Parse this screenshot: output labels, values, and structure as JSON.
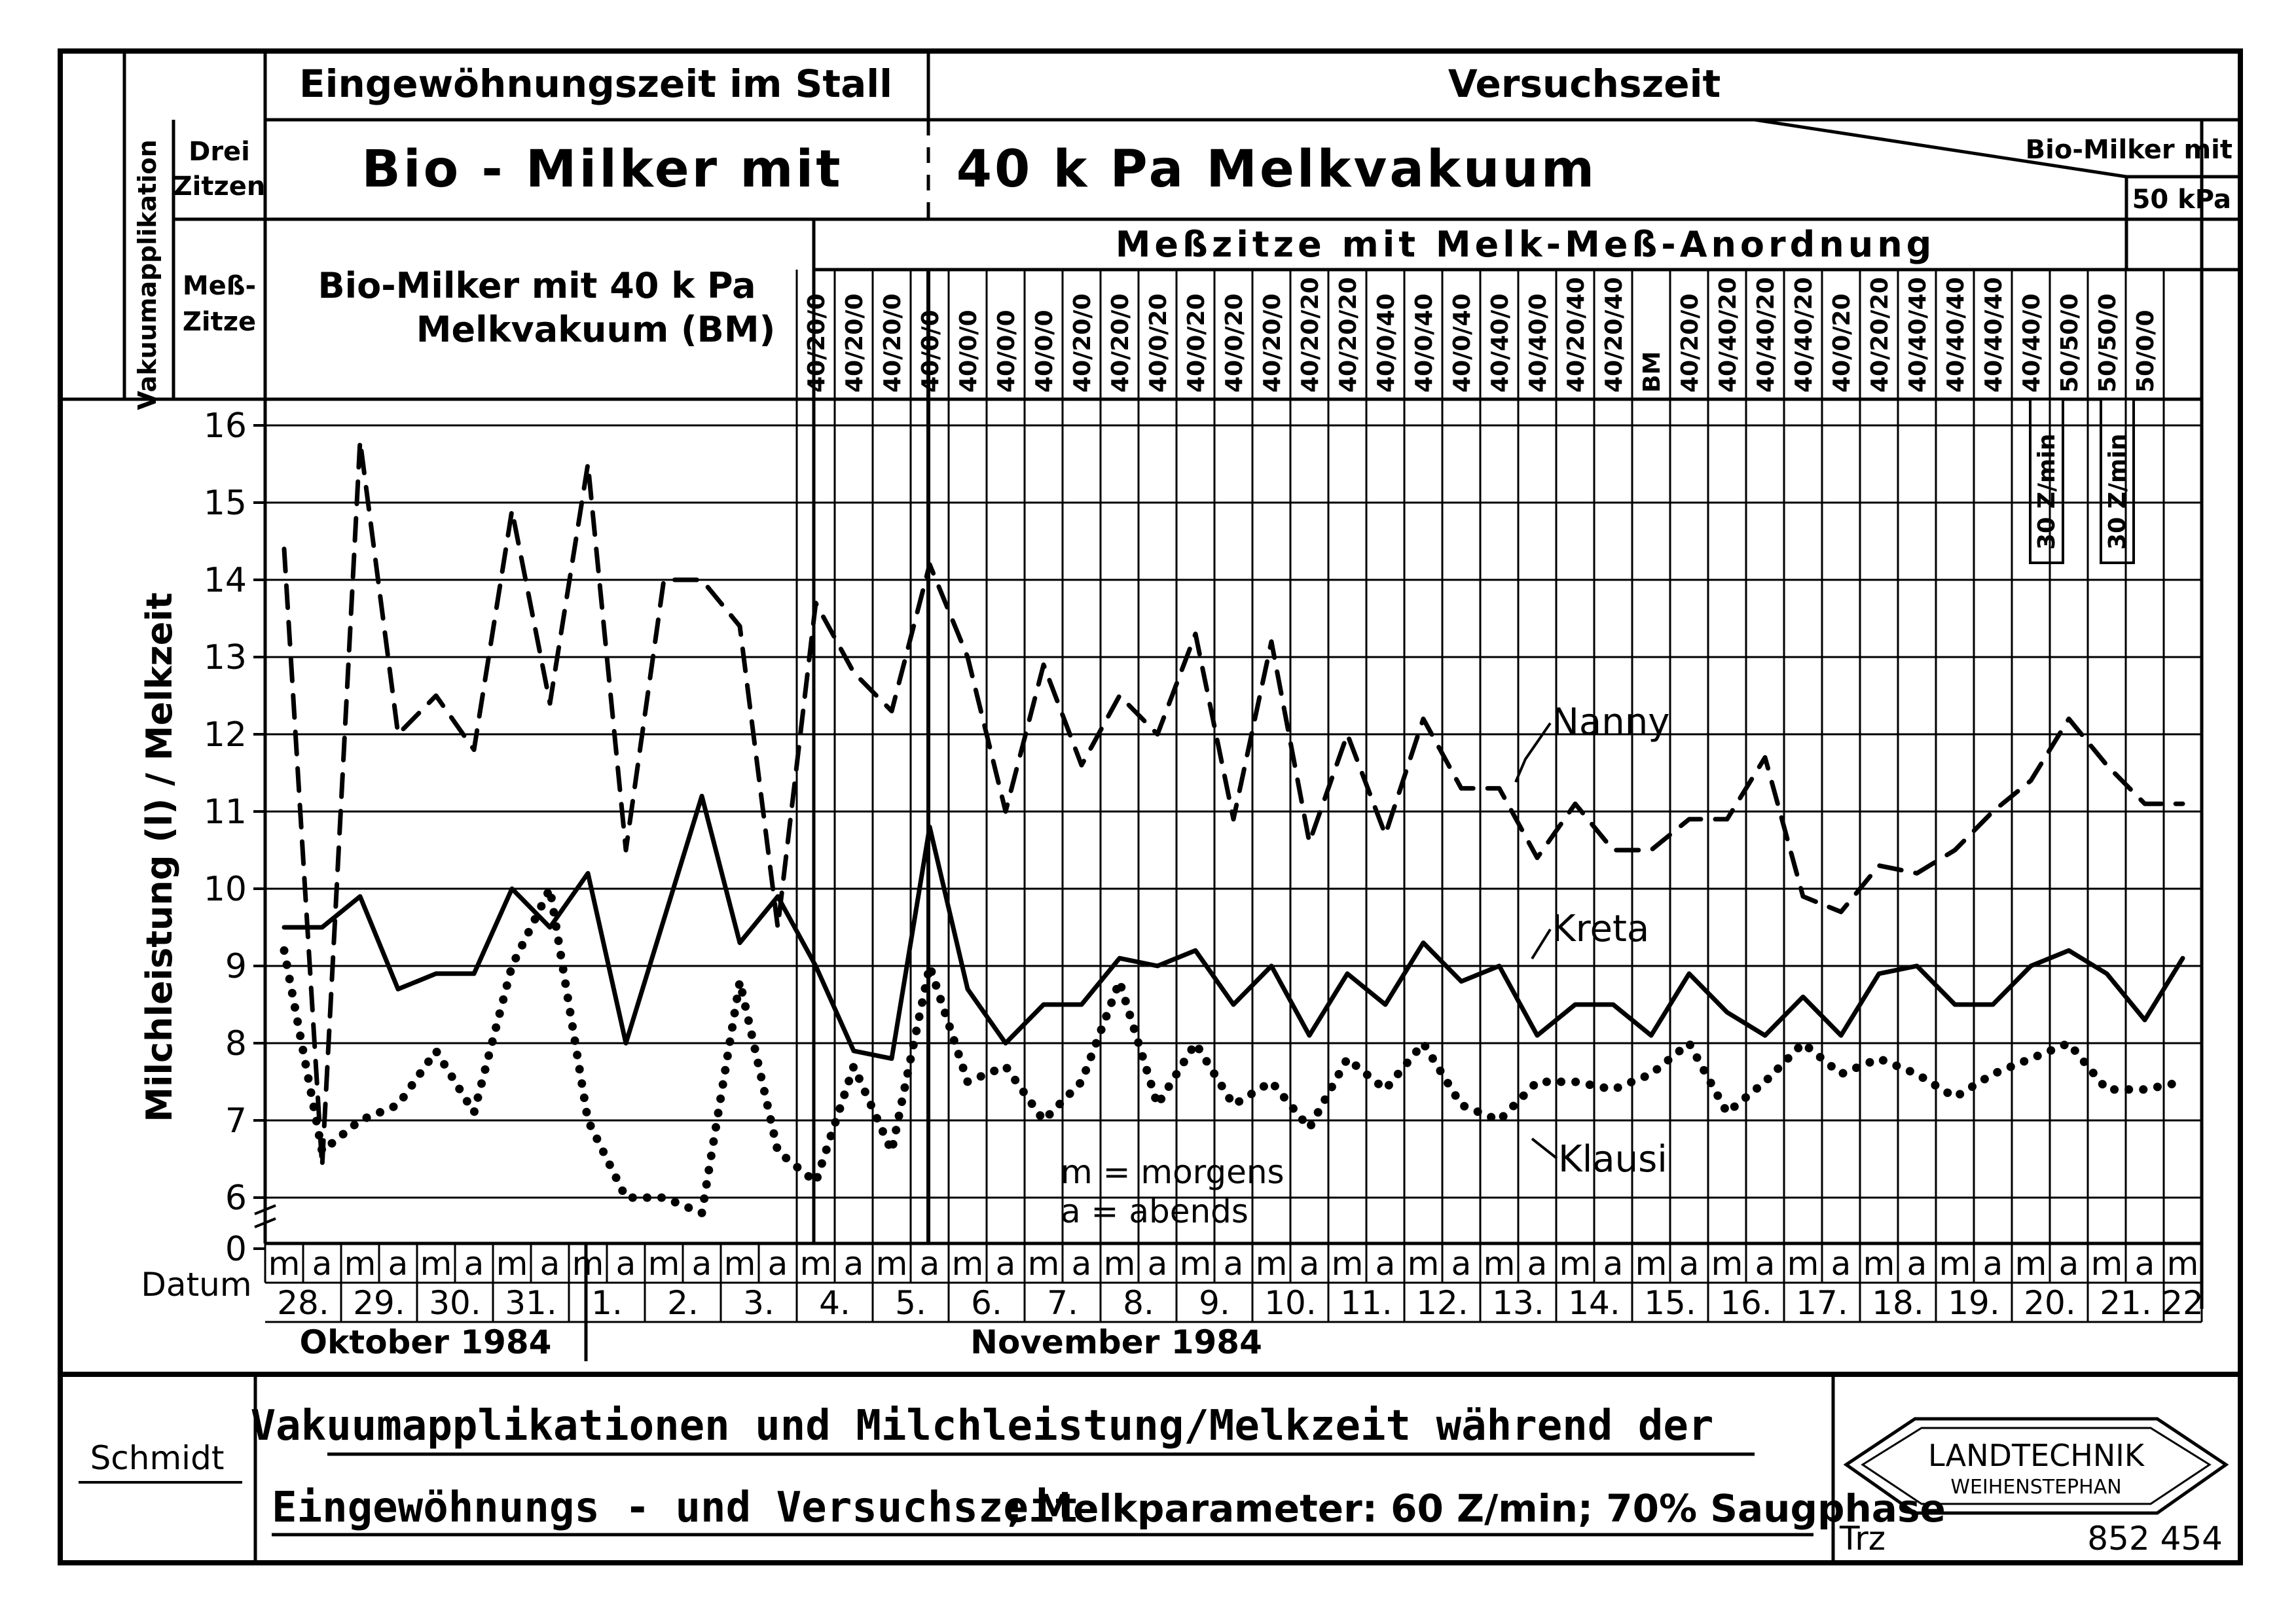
{
  "header": {
    "phase_acclimation": "Eingewöhnungszeit im Stall",
    "phase_trial": "Versuchszeit",
    "row_label_vertical": "Vakuumapplikation",
    "row1_label_a": "Drei",
    "row1_label_b": "Zitzen",
    "row1_text_left": "Bio - Milker  mit",
    "row1_text_right": "40 k Pa  Melkvakuum",
    "row1_text_end_a": "Bio-Milker mit",
    "row1_text_end_b": "50 kPa",
    "row2_label_a": "Meß-",
    "row2_label_b": "Zitze",
    "row2_text_a": "Bio-Milker mit 40 k Pa",
    "row2_text_b": "Melkvakuum (BM)",
    "row2_subheader": "Meßzitze mit Melk-Meß-Anordnung",
    "codes": [
      "40/20/0",
      "40/20/0",
      "40/20/0",
      "40/0/0",
      "40/0/0",
      "40/0/0",
      "40/0/0",
      "40/20/0",
      "40/20/0",
      "40/0/20",
      "40/0/20",
      "40/0/20",
      "40/20/0",
      "40/20/20",
      "40/20/20",
      "40/0/40",
      "40/0/40",
      "40/0/40",
      "40/40/0",
      "40/40/0",
      "40/20/40",
      "40/20/40",
      "BM",
      "40/20/0",
      "40/40/20",
      "40/40/20",
      "40/40/20",
      "40/0/20",
      "40/20/20",
      "40/40/40",
      "40/40/40",
      "40/40/40",
      "40/40/0",
      "50/50/0",
      "50/50/0",
      "50/0/0"
    ],
    "rate_label": "30 Z/min"
  },
  "axes": {
    "ylabel": "Milchleistung (l) / Melkzeit",
    "yticks": [
      "0",
      "6",
      "7",
      "8",
      "9",
      "10",
      "11",
      "12",
      "13",
      "14",
      "15",
      "16"
    ],
    "date_label": "Datum",
    "month1": "Oktober 1984",
    "month2": "November 1984"
  },
  "legend_note": {
    "line1": "m = morgens",
    "line2": "a = abends"
  },
  "chart_data": {
    "type": "line",
    "title": "Vakuumapplikationen und Milchleistung/Melkzeit während der Eingewöhnungs- und Versuchszeit; Melkparameter: 60 Z/min; 70% Saugphase",
    "xlabel": "Datum",
    "ylabel": "Milchleistung (l) / Melkzeit",
    "ylim": [
      5.5,
      16
    ],
    "y_axis_break": "0 shown below broken axis at 6",
    "grid": true,
    "x": [
      "28.m",
      "28.a",
      "29.m",
      "29.a",
      "30.m",
      "30.a",
      "31.m",
      "31.a",
      "1.m",
      "1.a",
      "2.m",
      "2.a",
      "3.m",
      "3.a",
      "4.m",
      "4.a",
      "5.m",
      "5.a",
      "6.m",
      "6.a",
      "7.m",
      "7.a",
      "8.m",
      "8.a",
      "9.m",
      "9.a",
      "10.m",
      "10.a",
      "11.m",
      "11.a",
      "12.m",
      "12.a",
      "13.m",
      "13.a",
      "14.m",
      "14.a",
      "15.m",
      "15.a",
      "16.m",
      "16.a",
      "17.m",
      "17.a",
      "18.m",
      "18.a",
      "19.m",
      "19.a",
      "20.m",
      "20.a",
      "21.m",
      "21.a",
      "22.m"
    ],
    "shift_labels": [
      "m",
      "a",
      "m",
      "a",
      "m",
      "a",
      "m",
      "a",
      "m",
      "a",
      "m",
      "a",
      "m",
      "a",
      "m",
      "a",
      "m",
      "a",
      "m",
      "a",
      "m",
      "a",
      "m",
      "a",
      "m",
      "a",
      "m",
      "a",
      "m",
      "a",
      "m",
      "a",
      "m",
      "a",
      "m",
      "a",
      "m",
      "a",
      "m",
      "a",
      "m",
      "a",
      "m",
      "a",
      "m",
      "a",
      "m",
      "a",
      "m",
      "a",
      "m"
    ],
    "day_labels": [
      "28.",
      "29.",
      "30.",
      "31.",
      "1.",
      "2.",
      "3.",
      "4.",
      "5.",
      "6.",
      "7.",
      "8.",
      "9.",
      "10.",
      "11.",
      "12.",
      "13.",
      "14.",
      "15.",
      "16.",
      "17.",
      "18.",
      "19.",
      "20.",
      "21.",
      "22"
    ],
    "series": [
      {
        "name": "Nanny",
        "style": "dashed",
        "values": [
          14.4,
          6.4,
          15.8,
          12.0,
          12.5,
          11.8,
          14.9,
          12.4,
          15.5,
          10.5,
          14.0,
          14.0,
          13.4,
          9.5,
          13.7,
          12.8,
          12.3,
          14.2,
          13.0,
          11.0,
          12.9,
          11.6,
          12.5,
          12.0,
          13.3,
          10.9,
          13.2,
          10.6,
          12.0,
          10.7,
          12.2,
          11.3,
          11.3,
          10.4,
          11.1,
          10.5,
          10.5,
          10.9,
          10.9,
          11.7,
          9.9,
          9.7,
          10.3,
          10.2,
          10.5,
          11.0,
          11.4,
          12.2,
          11.6,
          11.1,
          11.1
        ]
      },
      {
        "name": "Kreta",
        "style": "solid",
        "values": [
          9.5,
          9.5,
          9.9,
          8.7,
          8.9,
          8.9,
          10.0,
          9.5,
          10.2,
          8.0,
          9.6,
          11.2,
          9.3,
          9.9,
          9.0,
          7.9,
          7.8,
          10.8,
          8.7,
          8.0,
          8.5,
          8.5,
          9.1,
          9.0,
          9.2,
          8.5,
          9.0,
          8.1,
          8.9,
          8.5,
          9.3,
          8.8,
          9.0,
          8.1,
          8.5,
          8.5,
          8.1,
          8.9,
          8.4,
          8.1,
          8.6,
          8.1,
          8.9,
          9.0,
          8.5,
          8.5,
          9.0,
          9.2,
          8.9,
          8.3,
          9.1
        ]
      },
      {
        "name": "Klausi",
        "style": "dotted",
        "values": [
          9.2,
          6.6,
          7.0,
          7.2,
          7.9,
          7.1,
          9.0,
          10.0,
          7.0,
          6.0,
          6.0,
          5.8,
          8.8,
          6.6,
          6.2,
          7.7,
          6.6,
          9.0,
          7.5,
          7.7,
          7.0,
          7.5,
          8.8,
          7.2,
          8.0,
          7.2,
          7.5,
          6.9,
          7.8,
          7.4,
          8.0,
          7.2,
          7.0,
          7.5,
          7.5,
          7.4,
          7.6,
          8.0,
          7.1,
          7.5,
          8.0,
          7.6,
          7.8,
          7.6,
          7.3,
          7.6,
          7.8,
          8.0,
          7.4,
          7.4,
          7.5
        ]
      }
    ]
  },
  "footer": {
    "author": "Schmidt",
    "title_line1": "Vakuumapplikationen und Milchleistung/Melkzeit während der",
    "title_line2_a": "Eingewöhnungs - und Versuchszeit",
    "title_line2_b": "; Melkparameter: 60 Z/min; 70% Saugphase",
    "logo_line1": "LANDTECHNIK",
    "logo_line2": "WEIHENSTEPHAN",
    "code_left": "Trz",
    "code_right": "852 454"
  }
}
